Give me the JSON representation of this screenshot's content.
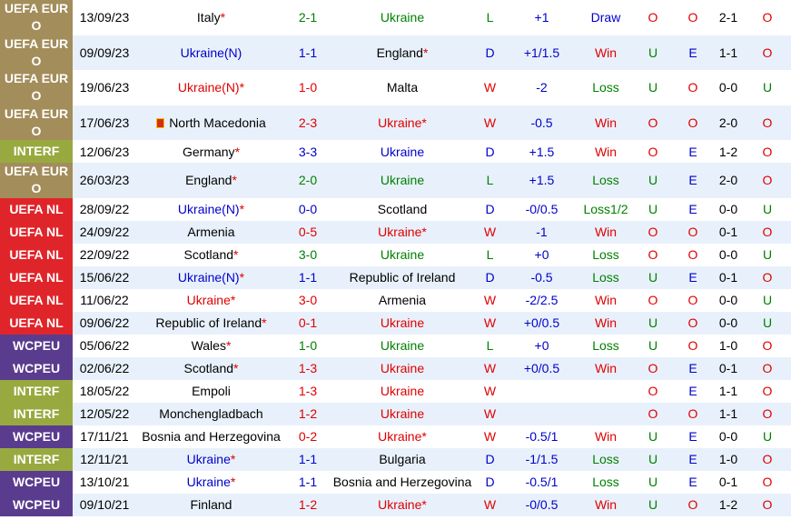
{
  "palette": {
    "W": "#e00000",
    "D": "#0000cc",
    "L": "#008000",
    "Win": "#e00000",
    "Loss": "#008000",
    "Draw": "#0000cc",
    "Loss1/2": "#008000",
    "O": "#e00000",
    "U": "#008000",
    "E": "#0000cc",
    "UEFA EURO": "#a38d5b",
    "INTERF": "#98aa3f",
    "UEFA NL": "#e0252a",
    "WCPEU": "#5a3c8e"
  },
  "table": {
    "rows": [
      {
        "competition": "UEFA EURO",
        "date": "13/09/23",
        "home": {
          "name": "Italy",
          "mark": "*"
        },
        "score": "2-1",
        "away": {
          "name": "Ukraine",
          "color": "#008000"
        },
        "result": "L",
        "handicap": "+1",
        "handicap_result": "Draw",
        "over_under": "O",
        "odd_even": "O",
        "half_time": "2-1",
        "half_over_under": "O"
      },
      {
        "competition": "UEFA EURO",
        "date": "09/09/23",
        "home": {
          "name": "Ukraine(N)",
          "color": "#0000cc"
        },
        "score": "1-1",
        "away": {
          "name": "England",
          "mark": "*"
        },
        "result": "D",
        "handicap": "+1/1.5",
        "handicap_result": "Win",
        "over_under": "U",
        "odd_even": "E",
        "half_time": "1-1",
        "half_over_under": "O"
      },
      {
        "competition": "UEFA EURO",
        "date": "19/06/23",
        "home": {
          "name": "Ukraine(N)",
          "mark": "*",
          "color": "#e00000"
        },
        "score": "1-0",
        "away": {
          "name": "Malta"
        },
        "result": "W",
        "handicap": "-2",
        "handicap_result": "Loss",
        "over_under": "U",
        "odd_even": "O",
        "half_time": "0-0",
        "half_over_under": "U"
      },
      {
        "competition": "UEFA EURO",
        "date": "17/06/23",
        "home": {
          "name": "North Macedonia",
          "flag": true
        },
        "score": "2-3",
        "away": {
          "name": "Ukraine",
          "mark": "*",
          "color": "#e00000"
        },
        "result": "W",
        "handicap": "-0.5",
        "handicap_result": "Win",
        "over_under": "O",
        "odd_even": "O",
        "half_time": "2-0",
        "half_over_under": "O"
      },
      {
        "competition": "INTERF",
        "date": "12/06/23",
        "home": {
          "name": "Germany",
          "mark": "*"
        },
        "score": "3-3",
        "away": {
          "name": "Ukraine",
          "color": "#0000cc"
        },
        "result": "D",
        "handicap": "+1.5",
        "handicap_result": "Win",
        "over_under": "O",
        "odd_even": "E",
        "half_time": "1-2",
        "half_over_under": "O"
      },
      {
        "competition": "UEFA EURO",
        "date": "26/03/23",
        "home": {
          "name": "England",
          "mark": "*"
        },
        "score": "2-0",
        "away": {
          "name": "Ukraine",
          "color": "#008000"
        },
        "result": "L",
        "handicap": "+1.5",
        "handicap_result": "Loss",
        "over_under": "U",
        "odd_even": "E",
        "half_time": "2-0",
        "half_over_under": "O"
      },
      {
        "competition": "UEFA NL",
        "date": "28/09/22",
        "home": {
          "name": "Ukraine(N)",
          "mark": "*",
          "color": "#0000cc"
        },
        "score": "0-0",
        "away": {
          "name": "Scotland"
        },
        "result": "D",
        "handicap": "-0/0.5",
        "handicap_result": "Loss1/2",
        "over_under": "U",
        "odd_even": "E",
        "half_time": "0-0",
        "half_over_under": "U"
      },
      {
        "competition": "UEFA NL",
        "date": "24/09/22",
        "home": {
          "name": "Armenia"
        },
        "score": "0-5",
        "away": {
          "name": "Ukraine",
          "mark": "*",
          "color": "#e00000"
        },
        "result": "W",
        "handicap": "-1",
        "handicap_result": "Win",
        "over_under": "O",
        "odd_even": "O",
        "half_time": "0-1",
        "half_over_under": "O"
      },
      {
        "competition": "UEFA NL",
        "date": "22/09/22",
        "home": {
          "name": "Scotland",
          "mark": "*"
        },
        "score": "3-0",
        "away": {
          "name": "Ukraine",
          "color": "#008000"
        },
        "result": "L",
        "handicap": "+0",
        "handicap_result": "Loss",
        "over_under": "O",
        "odd_even": "O",
        "half_time": "0-0",
        "half_over_under": "U"
      },
      {
        "competition": "UEFA NL",
        "date": "15/06/22",
        "home": {
          "name": "Ukraine(N)",
          "mark": "*",
          "color": "#0000cc"
        },
        "score": "1-1",
        "away": {
          "name": "Republic of Ireland"
        },
        "result": "D",
        "handicap": "-0.5",
        "handicap_result": "Loss",
        "over_under": "U",
        "odd_even": "E",
        "half_time": "0-1",
        "half_over_under": "O"
      },
      {
        "competition": "UEFA NL",
        "date": "11/06/22",
        "home": {
          "name": "Ukraine",
          "mark": "*",
          "color": "#e00000"
        },
        "score": "3-0",
        "away": {
          "name": "Armenia"
        },
        "result": "W",
        "handicap": "-2/2.5",
        "handicap_result": "Win",
        "over_under": "O",
        "odd_even": "O",
        "half_time": "0-0",
        "half_over_under": "U"
      },
      {
        "competition": "UEFA NL",
        "date": "09/06/22",
        "home": {
          "name": "Republic of Ireland",
          "mark": "*"
        },
        "score": "0-1",
        "away": {
          "name": "Ukraine",
          "color": "#e00000"
        },
        "result": "W",
        "handicap": "+0/0.5",
        "handicap_result": "Win",
        "over_under": "U",
        "odd_even": "O",
        "half_time": "0-0",
        "half_over_under": "U"
      },
      {
        "competition": "WCPEU",
        "date": "05/06/22",
        "home": {
          "name": "Wales",
          "mark": "*"
        },
        "score": "1-0",
        "away": {
          "name": "Ukraine",
          "color": "#008000"
        },
        "result": "L",
        "handicap": "+0",
        "handicap_result": "Loss",
        "over_under": "U",
        "odd_even": "O",
        "half_time": "1-0",
        "half_over_under": "O"
      },
      {
        "competition": "WCPEU",
        "date": "02/06/22",
        "home": {
          "name": "Scotland",
          "mark": "*"
        },
        "score": "1-3",
        "away": {
          "name": "Ukraine",
          "color": "#e00000"
        },
        "result": "W",
        "handicap": "+0/0.5",
        "handicap_result": "Win",
        "over_under": "O",
        "odd_even": "E",
        "half_time": "0-1",
        "half_over_under": "O"
      },
      {
        "competition": "INTERF",
        "date": "18/05/22",
        "home": {
          "name": "Empoli"
        },
        "score": "1-3",
        "away": {
          "name": "Ukraine",
          "color": "#e00000"
        },
        "result": "W",
        "handicap": null,
        "handicap_result": null,
        "over_under": "O",
        "odd_even": "E",
        "half_time": "1-1",
        "half_over_under": "O"
      },
      {
        "competition": "INTERF",
        "date": "12/05/22",
        "home": {
          "name": "Monchengladbach"
        },
        "score": "1-2",
        "away": {
          "name": "Ukraine",
          "color": "#e00000"
        },
        "result": "W",
        "handicap": null,
        "handicap_result": null,
        "over_under": "O",
        "odd_even": "O",
        "half_time": "1-1",
        "half_over_under": "O"
      },
      {
        "competition": "WCPEU",
        "date": "17/11/21",
        "home": {
          "name": "Bosnia and Herzegovina"
        },
        "score": "0-2",
        "away": {
          "name": "Ukraine",
          "mark": "*",
          "color": "#e00000"
        },
        "result": "W",
        "handicap": "-0.5/1",
        "handicap_result": "Win",
        "over_under": "U",
        "odd_even": "E",
        "half_time": "0-0",
        "half_over_under": "U"
      },
      {
        "competition": "INTERF",
        "date": "12/11/21",
        "home": {
          "name": "Ukraine",
          "mark": "*",
          "color": "#0000cc"
        },
        "score": "1-1",
        "away": {
          "name": "Bulgaria"
        },
        "result": "D",
        "handicap": "-1/1.5",
        "handicap_result": "Loss",
        "over_under": "U",
        "odd_even": "E",
        "half_time": "1-0",
        "half_over_under": "O"
      },
      {
        "competition": "WCPEU",
        "date": "13/10/21",
        "home": {
          "name": "Ukraine",
          "mark": "*",
          "color": "#0000cc"
        },
        "score": "1-1",
        "away": {
          "name": "Bosnia and Herzegovina"
        },
        "result": "D",
        "handicap": "-0.5/1",
        "handicap_result": "Loss",
        "over_under": "U",
        "odd_even": "E",
        "half_time": "0-1",
        "half_over_under": "O"
      },
      {
        "competition": "WCPEU",
        "date": "09/10/21",
        "home": {
          "name": "Finland"
        },
        "score": "1-2",
        "away": {
          "name": "Ukraine",
          "mark": "*",
          "color": "#e00000"
        },
        "result": "W",
        "handicap": "-0/0.5",
        "handicap_result": "Win",
        "over_under": "U",
        "odd_even": "O",
        "half_time": "1-2",
        "half_over_under": "O"
      }
    ]
  }
}
